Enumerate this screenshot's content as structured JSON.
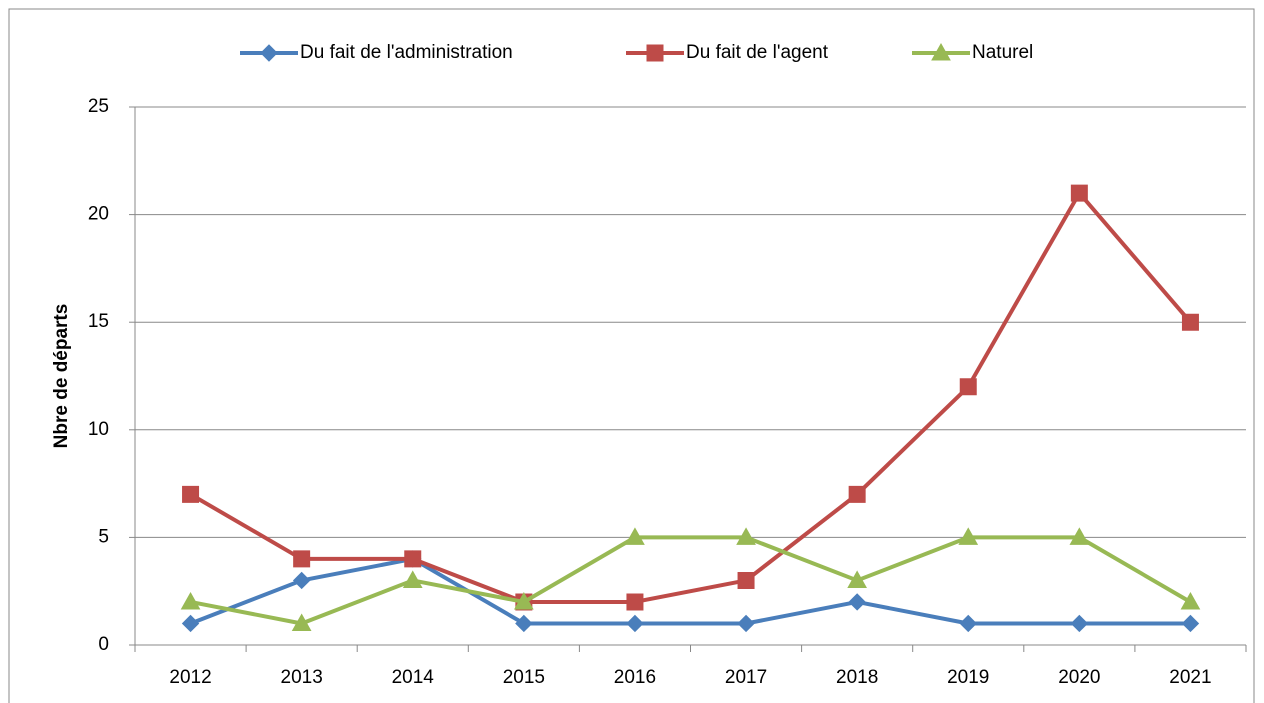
{
  "chart_data": {
    "type": "line",
    "y_label": "Nbre de départs",
    "categories": [
      "2012",
      "2013",
      "2014",
      "2015",
      "2016",
      "2017",
      "2018",
      "2019",
      "2020",
      "2021"
    ],
    "series": [
      {
        "name": "Du fait de l'administration",
        "color": "#4a7ebb",
        "marker": "diamond",
        "values": [
          1,
          3,
          4,
          1,
          1,
          1,
          2,
          1,
          1,
          1
        ]
      },
      {
        "name": "Du fait de l'agent",
        "color": "#be4b48",
        "marker": "square",
        "values": [
          7,
          4,
          4,
          2,
          2,
          3,
          7,
          12,
          21,
          15
        ]
      },
      {
        "name": "Naturel",
        "color": "#98b954",
        "marker": "triangle",
        "values": [
          2,
          1,
          3,
          2,
          5,
          5,
          3,
          5,
          5,
          2
        ]
      }
    ],
    "ylim": [
      0,
      25
    ],
    "yticks": [
      0,
      5,
      10,
      15,
      20,
      25
    ],
    "grid": true,
    "legend": "top"
  }
}
